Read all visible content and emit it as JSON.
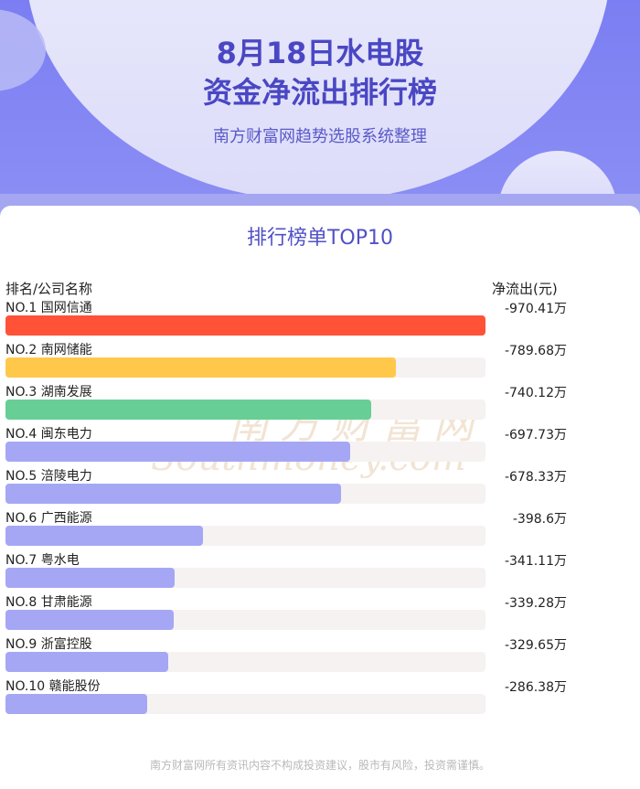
{
  "header": {
    "title_line1": "8月18日水电股",
    "title_line2": "资金净流出排行榜",
    "subtitle": "南方财富网趋势选股系统整理"
  },
  "section_title": "排行榜单TOP10",
  "columns": {
    "left": "排名/公司名称",
    "right": "净流出(元)"
  },
  "watermark": {
    "cn": "南方财富网",
    "en": "Southmoney.com"
  },
  "footer": "南方财富网所有资讯内容不构成投资建议，股市有风险，投资需谨慎。",
  "colors": {
    "accent": "#4a47c4",
    "rank1": "#ff5237",
    "rank2": "#ffc84a",
    "rank3": "#67cf95",
    "other": "#a5a7f5",
    "track": "#f6f2f1"
  },
  "chart_data": {
    "type": "bar",
    "orientation": "horizontal",
    "unit": "万",
    "categories": [
      "国网信通",
      "南网储能",
      "湖南发展",
      "闽东电力",
      "涪陵电力",
      "广西能源",
      "粤水电",
      "甘肃能源",
      "浙富控股",
      "赣能股份"
    ],
    "ranks": [
      "NO.1",
      "NO.2",
      "NO.3",
      "NO.4",
      "NO.5",
      "NO.6",
      "NO.7",
      "NO.8",
      "NO.9",
      "NO.10"
    ],
    "values": [
      -970.41,
      -789.68,
      -740.12,
      -697.73,
      -678.33,
      -398.6,
      -341.11,
      -339.28,
      -329.65,
      -286.38
    ],
    "value_labels": [
      "-970.41万",
      "-789.68万",
      "-740.12万",
      "-697.73万",
      "-678.33万",
      "-398.6万",
      "-341.11万",
      "-339.28万",
      "-329.65万",
      "-286.38万"
    ]
  }
}
